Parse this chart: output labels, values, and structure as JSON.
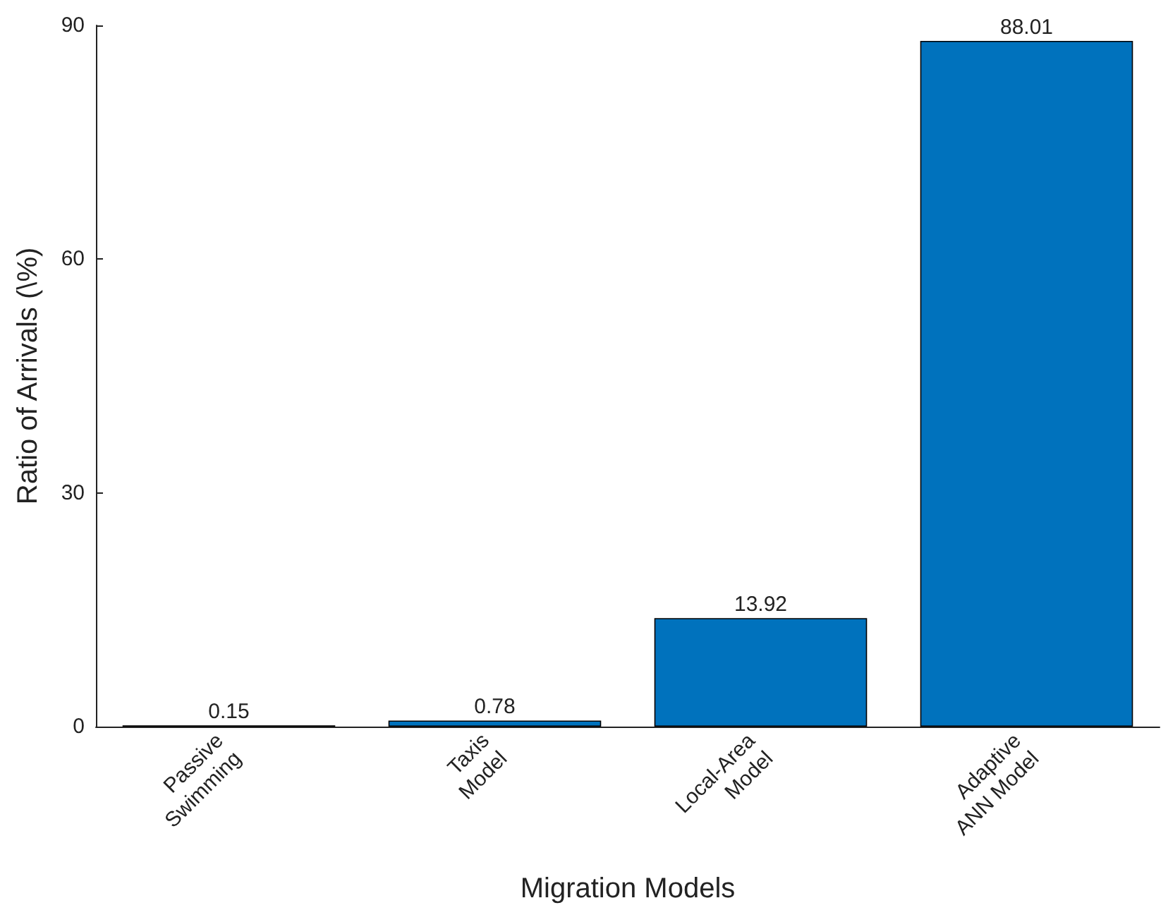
{
  "chart_data": {
    "type": "bar",
    "xlabel": "Migration Models",
    "ylabel": "Ratio of Arrivals (\\%)",
    "categories": [
      "Passive\nSwimming",
      "Taxis\nModel",
      "Local-Area\nModel",
      "Adaptive\nANN Model"
    ],
    "values": [
      0.15,
      0.78,
      13.92,
      88.01
    ],
    "color": "#0072bd",
    "ylim": [
      0,
      90
    ],
    "yticks": [
      0,
      30,
      60,
      90
    ],
    "data_labels": true
  }
}
